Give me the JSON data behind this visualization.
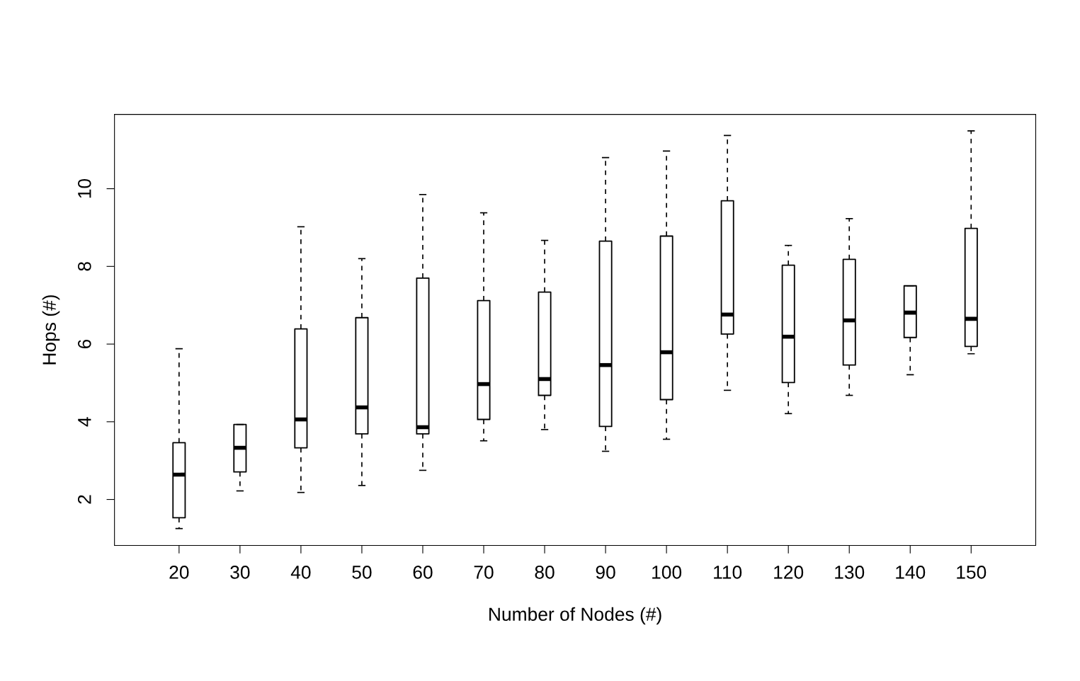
{
  "chart_data": {
    "type": "box",
    "xlabel": "Number of Nodes (#)",
    "ylabel": "Hops (#)",
    "categories": [
      "20",
      "30",
      "40",
      "50",
      "60",
      "70",
      "80",
      "90",
      "100",
      "110",
      "120",
      "130",
      "140",
      "150"
    ],
    "boxes": [
      {
        "low": 1.25,
        "q1": 1.53,
        "median": 2.64,
        "q3": 3.46,
        "high": 5.88
      },
      {
        "low": 2.22,
        "q1": 2.71,
        "median": 3.33,
        "q3": 3.93,
        "high": 3.93
      },
      {
        "low": 2.18,
        "q1": 3.33,
        "median": 4.06,
        "q3": 6.39,
        "high": 9.02
      },
      {
        "low": 2.36,
        "q1": 3.69,
        "median": 4.37,
        "q3": 6.68,
        "high": 8.2
      },
      {
        "low": 2.75,
        "q1": 3.69,
        "median": 3.86,
        "q3": 7.7,
        "high": 9.85
      },
      {
        "low": 3.51,
        "q1": 4.06,
        "median": 4.97,
        "q3": 7.12,
        "high": 9.38
      },
      {
        "low": 3.8,
        "q1": 4.68,
        "median": 5.1,
        "q3": 7.34,
        "high": 8.67
      },
      {
        "low": 3.24,
        "q1": 3.88,
        "median": 5.46,
        "q3": 8.65,
        "high": 10.8
      },
      {
        "low": 3.55,
        "q1": 4.57,
        "median": 5.79,
        "q3": 8.78,
        "high": 10.97
      },
      {
        "low": 4.81,
        "q1": 6.26,
        "median": 6.76,
        "q3": 9.69,
        "high": 11.37
      },
      {
        "low": 4.21,
        "q1": 5.01,
        "median": 6.19,
        "q3": 8.03,
        "high": 8.54
      },
      {
        "low": 4.68,
        "q1": 5.46,
        "median": 6.61,
        "q3": 8.18,
        "high": 9.23
      },
      {
        "low": 5.21,
        "q1": 6.17,
        "median": 6.81,
        "q3": 7.5,
        "high": 7.5
      },
      {
        "low": 5.75,
        "q1": 5.94,
        "median": 6.65,
        "q3": 8.98,
        "high": 11.49
      }
    ],
    "ylim": [
      0.815,
      11.913
    ],
    "yticks": [
      2,
      4,
      6,
      8,
      10
    ],
    "grid": false
  }
}
